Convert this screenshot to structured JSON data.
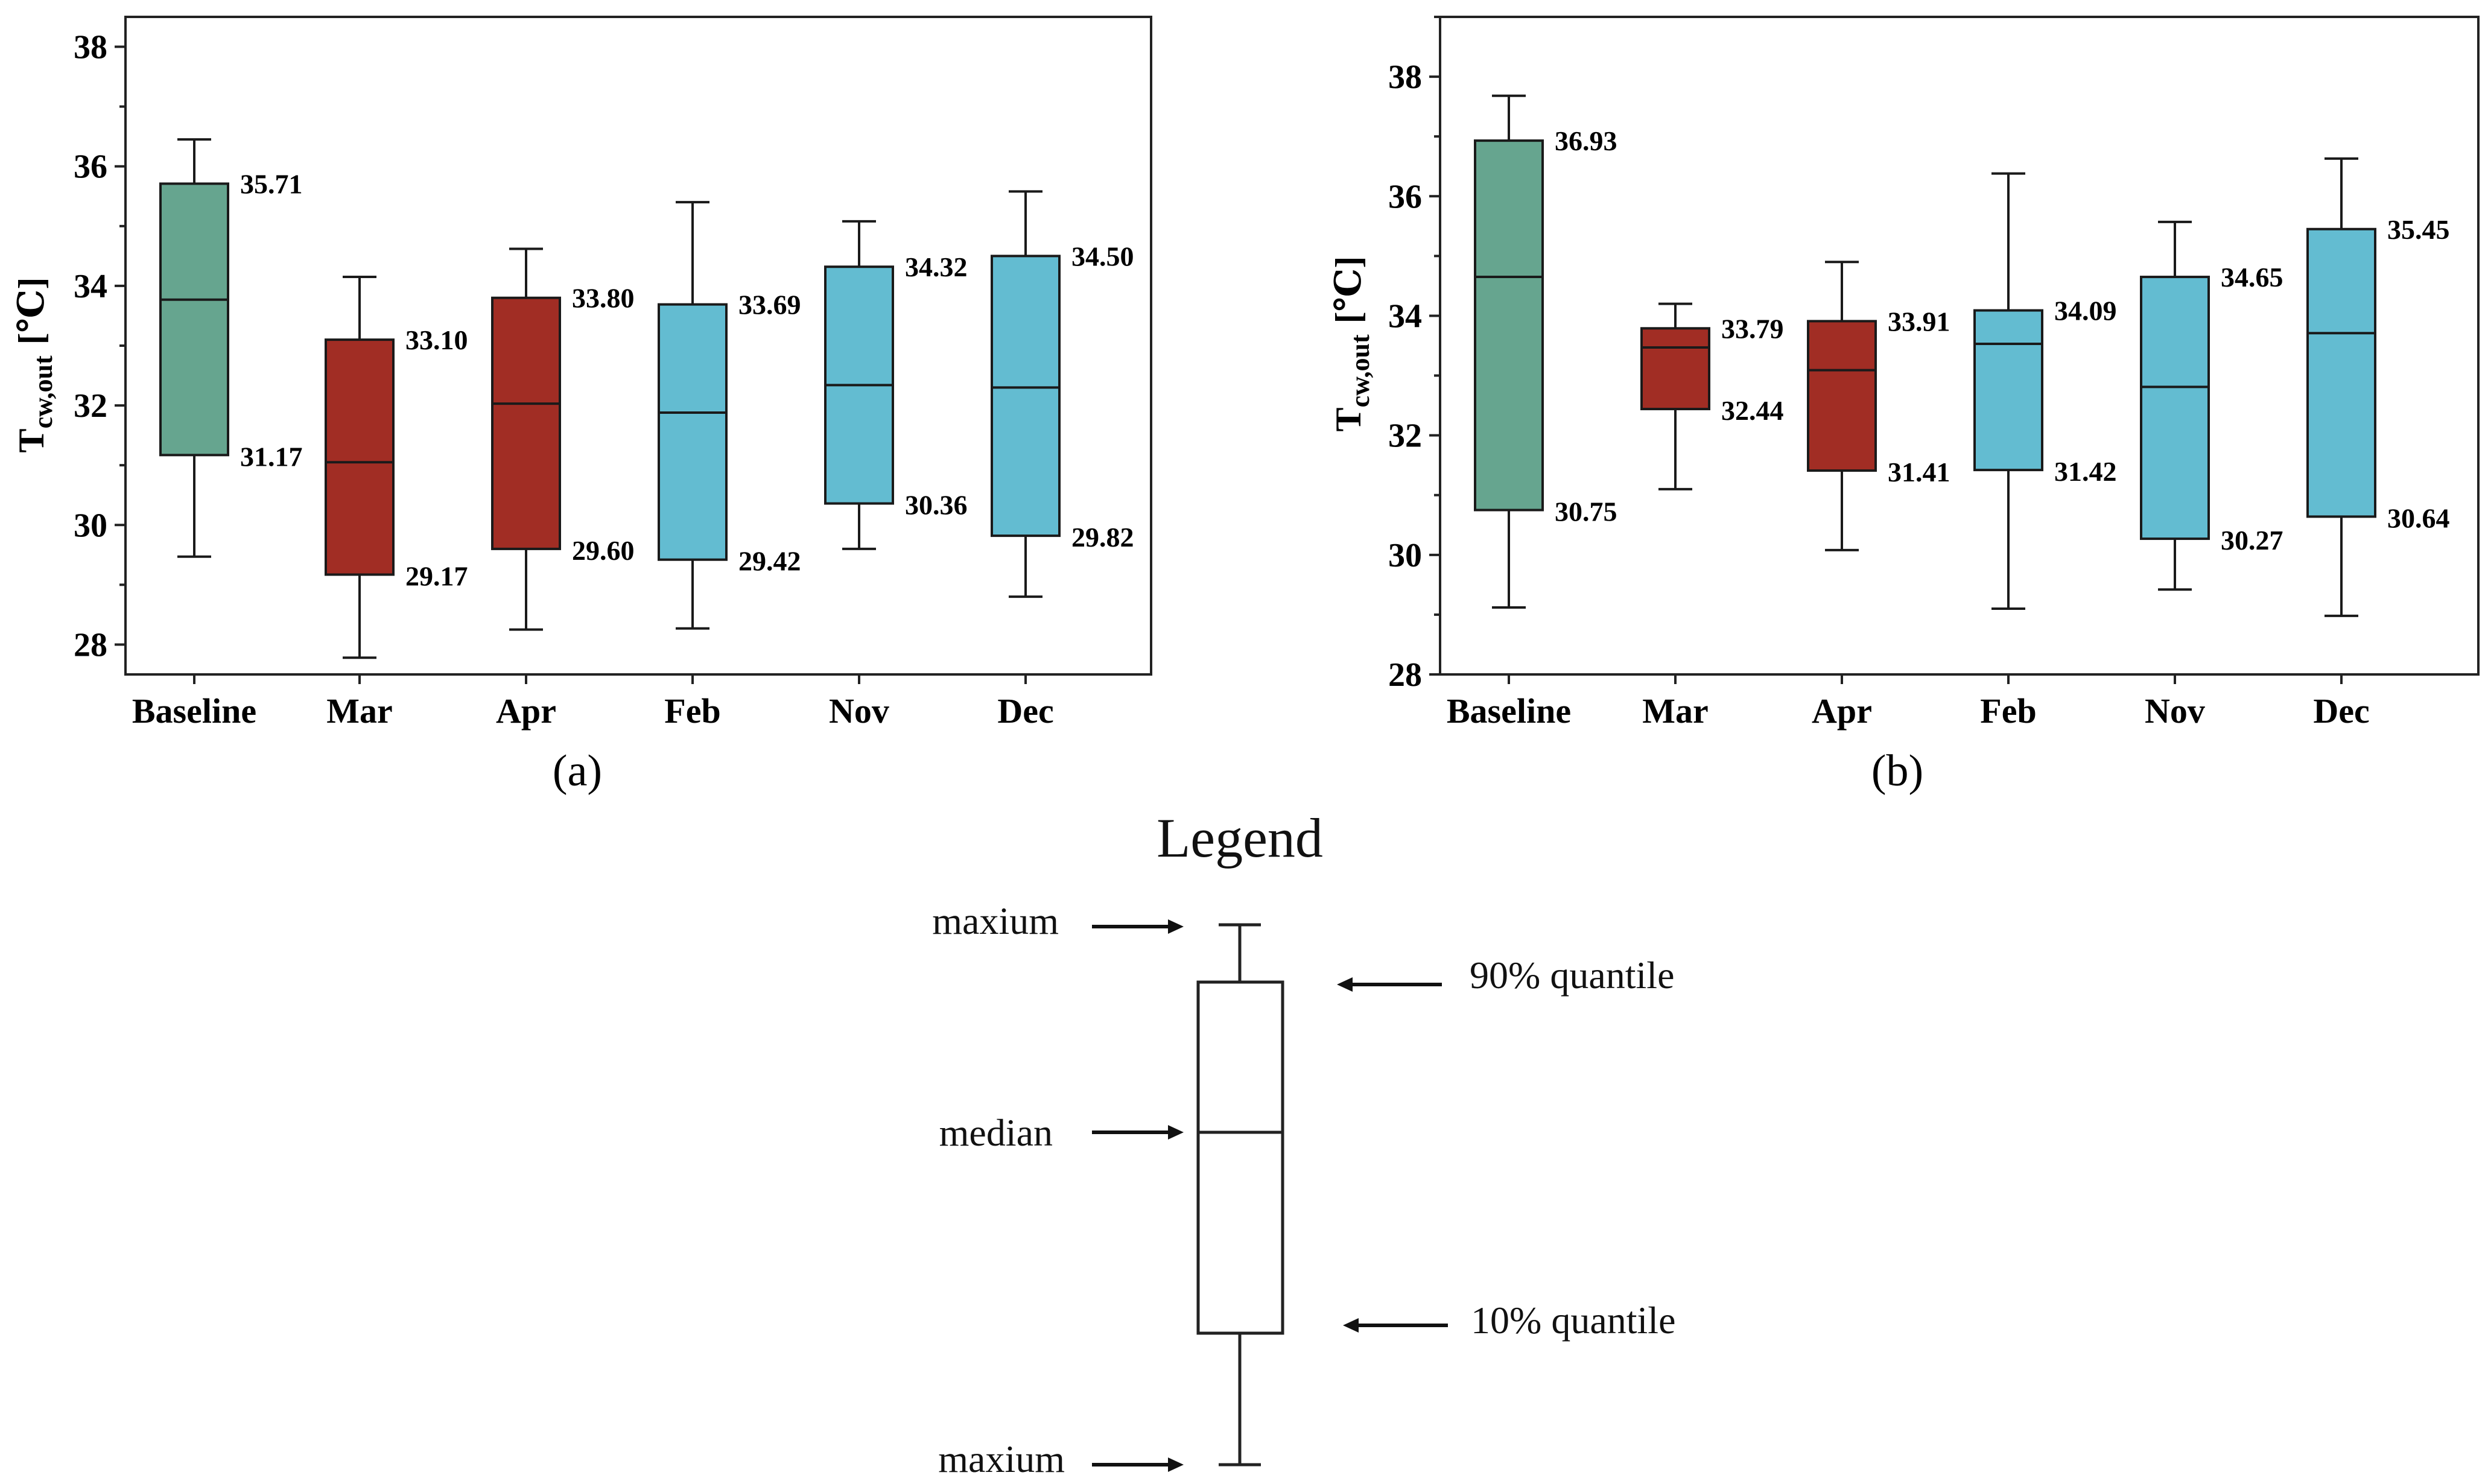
{
  "chart_data": [
    {
      "type": "box",
      "caption": "(a)",
      "ylabel": "T",
      "ylabel_sub": "cw,out",
      "ylabel_unit": "[℃]",
      "ylim": [
        27.5,
        38.5
      ],
      "yticks": [
        28,
        30,
        32,
        34,
        36,
        38
      ],
      "categories": [
        "Baseline",
        "Mar",
        "Apr",
        "Feb",
        "Nov",
        "Dec"
      ],
      "colors": [
        "#66a58f",
        "#a12d24",
        "#a12d24",
        "#63bcd1",
        "#63bcd1",
        "#63bcd1"
      ],
      "whisker_max": [
        36.45,
        34.15,
        34.62,
        35.4,
        35.08,
        35.58
      ],
      "q90": [
        35.71,
        33.1,
        33.8,
        33.69,
        34.32,
        34.5
      ],
      "median": [
        33.77,
        31.05,
        32.03,
        31.88,
        32.34,
        32.3
      ],
      "q10": [
        31.17,
        29.17,
        29.6,
        29.42,
        30.36,
        29.82
      ],
      "whisker_min": [
        29.47,
        27.78,
        28.25,
        28.27,
        29.6,
        28.8
      ],
      "q90_labels": [
        "35.71",
        "33.10",
        "33.80",
        "33.69",
        "34.32",
        "34.50"
      ],
      "q10_labels": [
        "31.17",
        "29.17",
        "29.60",
        "29.42",
        "30.36",
        "29.82"
      ]
    },
    {
      "type": "box",
      "caption": "(b)",
      "ylabel": "T",
      "ylabel_sub": "cw,out",
      "ylabel_unit": "[℃]",
      "ylim": [
        28,
        39
      ],
      "yticks": [
        28,
        30,
        32,
        34,
        36,
        38
      ],
      "categories": [
        "Baseline",
        "Mar",
        "Apr",
        "Feb",
        "Nov",
        "Dec"
      ],
      "colors": [
        "#66a58f",
        "#a12d24",
        "#a12d24",
        "#63bcd1",
        "#63bcd1",
        "#63bcd1"
      ],
      "whisker_max": [
        37.68,
        34.2,
        34.9,
        36.38,
        35.57,
        36.63
      ],
      "q90": [
        36.93,
        33.79,
        33.91,
        34.09,
        34.65,
        35.45
      ],
      "median": [
        34.65,
        33.47,
        33.09,
        33.53,
        32.81,
        33.71
      ],
      "q10": [
        30.75,
        32.44,
        31.41,
        31.42,
        30.27,
        30.64
      ],
      "whisker_min": [
        29.12,
        31.1,
        30.08,
        29.1,
        29.42,
        28.98
      ],
      "q90_labels": [
        "36.93",
        "33.79",
        "33.91",
        "34.09",
        "34.65",
        "35.45"
      ],
      "q10_labels": [
        "30.75",
        "32.44",
        "31.41",
        "31.42",
        "30.27",
        "30.64"
      ]
    }
  ],
  "legend": {
    "title": "Legend",
    "top_label": "maxium",
    "q90_label": "90% quantile",
    "median_label": "median",
    "q10_label": "10% quantile",
    "bottom_label": "maxium"
  }
}
